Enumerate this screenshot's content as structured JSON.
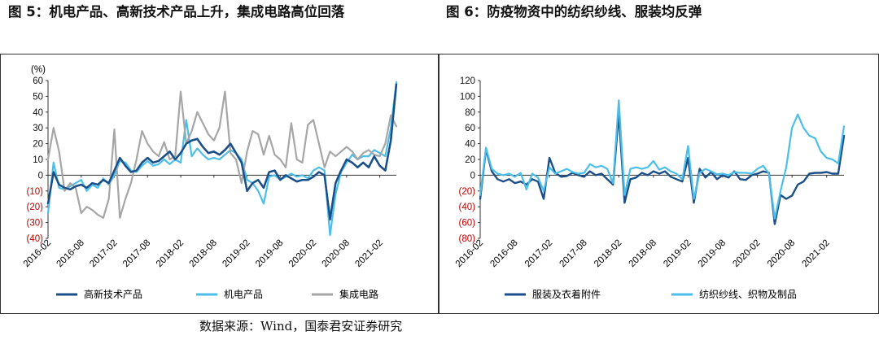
{
  "titles": {
    "left": "图 5：机电产品、高新技术产品上升，集成电路高位回落",
    "right": "图 6：防疫物资中的纺织纱线、服装均反弹"
  },
  "source": "数据来源：Wind，国泰君安证券研究",
  "colors": {
    "dark_blue": "#1b4f8a",
    "light_blue": "#4bbfea",
    "gray": "#a6a6a6",
    "negative_label": "#c00000"
  },
  "chart_data": [
    {
      "type": "line",
      "unit_label": "(%)",
      "ylim": [
        -40,
        60
      ],
      "yticks": [
        60,
        50,
        40,
        30,
        20,
        10,
        0,
        -10,
        -20,
        -30,
        -40
      ],
      "ytick_labels": [
        "60",
        "50",
        "40",
        "30",
        "20",
        "10",
        "0",
        "(10)",
        "(20)",
        "(30)",
        "(40)"
      ],
      "x_tick_labels": [
        "2016-02",
        "2016-08",
        "2017-02",
        "2017-08",
        "2018-02",
        "2018-08",
        "2019-02",
        "2019-08",
        "2020-02",
        "2020-08",
        "2021-02"
      ],
      "x_start": "2016-02",
      "x_end": "2021-02",
      "legend_position": "bottom",
      "series": [
        {
          "name": "高新技术产品",
          "color": "#1b4f8a",
          "values": [
            -18,
            2,
            -6,
            -8,
            -9,
            -7,
            -6,
            -8,
            -5,
            -6,
            -3,
            -5,
            3,
            11,
            6,
            2,
            3,
            8,
            11,
            8,
            9,
            12,
            15,
            10,
            14,
            20,
            22,
            23,
            18,
            14,
            15,
            13,
            16,
            20,
            14,
            8,
            -10,
            -5,
            -3,
            -8,
            2,
            3,
            -3,
            0,
            -2,
            -4,
            -3,
            -3,
            -1,
            2,
            0,
            -28,
            -5,
            3,
            10,
            8,
            5,
            8,
            5,
            12,
            6,
            3,
            22,
            58
          ]
        },
        {
          "name": "机电产品",
          "color": "#4bbfea",
          "values": [
            -24,
            8,
            -8,
            -9,
            -7,
            -5,
            -3,
            -10,
            -6,
            -8,
            -2,
            -6,
            0,
            9,
            8,
            3,
            2,
            6,
            9,
            6,
            7,
            10,
            7,
            10,
            8,
            35,
            12,
            17,
            13,
            10,
            11,
            10,
            13,
            16,
            14,
            10,
            -3,
            -5,
            -10,
            -18,
            -1,
            0,
            -3,
            -1,
            1,
            -1,
            0,
            -2,
            3,
            5,
            3,
            -38,
            -12,
            2,
            8,
            13,
            10,
            12,
            12,
            16,
            14,
            12,
            30,
            59
          ]
        },
        {
          "name": "集成电路",
          "color": "#a6a6a6",
          "values": [
            10,
            30,
            15,
            -10,
            -5,
            -8,
            -24,
            -20,
            -22,
            -25,
            -27,
            -15,
            29,
            -27,
            -15,
            -5,
            10,
            28,
            20,
            15,
            12,
            21,
            10,
            12,
            53,
            20,
            28,
            40,
            33,
            26,
            22,
            30,
            53,
            14,
            10,
            -5,
            15,
            28,
            26,
            13,
            25,
            13,
            10,
            5,
            33,
            10,
            8,
            32,
            35,
            20,
            5,
            15,
            12,
            15,
            18,
            15,
            10,
            14,
            16,
            13,
            12,
            20,
            38,
            31
          ]
        }
      ]
    },
    {
      "type": "line",
      "ylim": [
        -80,
        120
      ],
      "yticks": [
        120,
        100,
        80,
        60,
        40,
        20,
        0,
        -20,
        -40,
        -60,
        -80
      ],
      "ytick_labels": [
        "120",
        "100",
        "80",
        "60",
        "40",
        "20",
        "0",
        "(20)",
        "(40)",
        "(60)",
        "(80)"
      ],
      "x_tick_labels": [
        "2016-02",
        "2016-08",
        "2017-02",
        "2017-08",
        "2018-02",
        "2018-08",
        "2019-02",
        "2019-08",
        "2020-02",
        "2020-08",
        "2021-02"
      ],
      "x_start": "2016-02",
      "x_end": "2021-02",
      "legend_position": "bottom",
      "series": [
        {
          "name": "服装及衣着附件",
          "color": "#1b4f8a",
          "values": [
            -30,
            33,
            5,
            -5,
            -8,
            -5,
            -10,
            -8,
            -12,
            -5,
            -8,
            -30,
            22,
            3,
            -2,
            -1,
            3,
            0,
            -2,
            5,
            0,
            2,
            -5,
            -12,
            78,
            -35,
            -5,
            -3,
            3,
            0,
            5,
            2,
            5,
            -2,
            -5,
            -8,
            22,
            -35,
            8,
            -3,
            4,
            -5,
            0,
            -3,
            5,
            -5,
            -6,
            0,
            2,
            5,
            3,
            -62,
            -25,
            -30,
            -26,
            -12,
            -8,
            2,
            3,
            3,
            4,
            2,
            2,
            50
          ]
        },
        {
          "name": "纺织纱线、织物及制品",
          "color": "#4bbfea",
          "values": [
            -25,
            35,
            8,
            2,
            0,
            2,
            -2,
            3,
            -18,
            2,
            -3,
            -20,
            10,
            2,
            5,
            8,
            4,
            2,
            3,
            14,
            10,
            12,
            8,
            -10,
            95,
            -25,
            8,
            10,
            8,
            10,
            18,
            7,
            10,
            5,
            2,
            -5,
            37,
            -30,
            3,
            8,
            5,
            1,
            2,
            0,
            4,
            3,
            3,
            2,
            8,
            12,
            2,
            -55,
            -20,
            10,
            60,
            77,
            60,
            50,
            47,
            30,
            22,
            20,
            15,
            62
          ]
        }
      ]
    }
  ]
}
